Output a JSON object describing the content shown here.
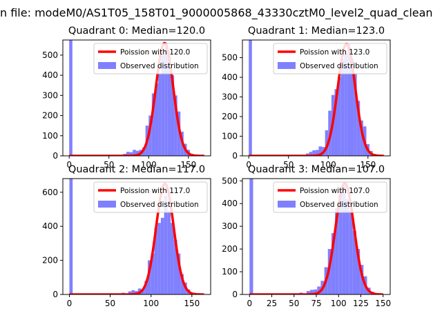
{
  "figure": {
    "suptitle": "n file: modeM0/AS1T05_158T01_9000005868_43330cztM0_level2_quad_clean"
  },
  "colors": {
    "fit_line": "#ff0000",
    "hist_fill": "#8080ff",
    "axis": "#000000",
    "background": "#ffffff"
  },
  "chart_data": [
    {
      "type": "bar",
      "title": "Quadrant 0: Median=120.0",
      "xlim": [
        -8,
        178
      ],
      "ylim": [
        0,
        575
      ],
      "xticks": [
        0,
        50,
        100,
        150
      ],
      "yticks": [
        0,
        100,
        200,
        300,
        400,
        500
      ],
      "legend_position": "top-right",
      "series": [
        {
          "name": "Poission with 120.0",
          "kind": "line",
          "mean": 120.0,
          "peak": 560,
          "x_range": [
            0,
            170
          ]
        },
        {
          "name": "Observed distribution",
          "kind": "histogram",
          "bin_width": 4,
          "bins": [
            {
              "x": 0,
              "y": 575
            },
            {
              "x": 68,
              "y": 10
            },
            {
              "x": 72,
              "y": 20
            },
            {
              "x": 76,
              "y": 18
            },
            {
              "x": 80,
              "y": 30
            },
            {
              "x": 84,
              "y": 25
            },
            {
              "x": 88,
              "y": 30
            },
            {
              "x": 92,
              "y": 42
            },
            {
              "x": 96,
              "y": 150
            },
            {
              "x": 100,
              "y": 200
            },
            {
              "x": 104,
              "y": 310
            },
            {
              "x": 108,
              "y": 360
            },
            {
              "x": 112,
              "y": 410
            },
            {
              "x": 116,
              "y": 500
            },
            {
              "x": 120,
              "y": 560
            },
            {
              "x": 124,
              "y": 500
            },
            {
              "x": 128,
              "y": 400
            },
            {
              "x": 132,
              "y": 300
            },
            {
              "x": 136,
              "y": 220
            },
            {
              "x": 140,
              "y": 120
            },
            {
              "x": 144,
              "y": 60
            },
            {
              "x": 148,
              "y": 30
            },
            {
              "x": 152,
              "y": 10
            }
          ]
        }
      ]
    },
    {
      "type": "bar",
      "title": "Quadrant 1: Median=123.0",
      "xlim": [
        -8,
        178
      ],
      "ylim": [
        0,
        590
      ],
      "xticks": [
        0,
        50,
        100,
        150
      ],
      "yticks": [
        0,
        100,
        200,
        300,
        400,
        500
      ],
      "legend_position": "top-right",
      "series": [
        {
          "name": "Poission with 123.0",
          "kind": "line",
          "mean": 123.0,
          "peak": 570,
          "x_range": [
            0,
            170
          ]
        },
        {
          "name": "Observed distribution",
          "kind": "histogram",
          "bin_width": 4,
          "bins": [
            {
              "x": 0,
              "y": 590
            },
            {
              "x": 72,
              "y": 12
            },
            {
              "x": 76,
              "y": 20
            },
            {
              "x": 80,
              "y": 28
            },
            {
              "x": 84,
              "y": 30
            },
            {
              "x": 88,
              "y": 48
            },
            {
              "x": 92,
              "y": 45
            },
            {
              "x": 96,
              "y": 130
            },
            {
              "x": 100,
              "y": 230
            },
            {
              "x": 104,
              "y": 310
            },
            {
              "x": 108,
              "y": 340
            },
            {
              "x": 112,
              "y": 400
            },
            {
              "x": 116,
              "y": 490
            },
            {
              "x": 120,
              "y": 520
            },
            {
              "x": 124,
              "y": 570
            },
            {
              "x": 128,
              "y": 500
            },
            {
              "x": 132,
              "y": 420
            },
            {
              "x": 136,
              "y": 280
            },
            {
              "x": 140,
              "y": 180
            },
            {
              "x": 144,
              "y": 150
            },
            {
              "x": 148,
              "y": 60
            },
            {
              "x": 152,
              "y": 25
            },
            {
              "x": 156,
              "y": 10
            }
          ]
        }
      ]
    },
    {
      "type": "bar",
      "title": "Quadrant 2: Median=117.0",
      "xlim": [
        -8,
        173
      ],
      "ylim": [
        0,
        680
      ],
      "xticks": [
        0,
        50,
        100,
        150
      ],
      "yticks": [
        0,
        200,
        400,
        600
      ],
      "legend_position": "top-right",
      "series": [
        {
          "name": "Poission with 117.0",
          "kind": "line",
          "mean": 117.0,
          "peak": 650,
          "x_range": [
            0,
            165
          ]
        },
        {
          "name": "Observed distribution",
          "kind": "histogram",
          "bin_width": 4,
          "bins": [
            {
              "x": 0,
              "y": 680
            },
            {
              "x": 64,
              "y": 10
            },
            {
              "x": 72,
              "y": 18
            },
            {
              "x": 76,
              "y": 25
            },
            {
              "x": 80,
              "y": 20
            },
            {
              "x": 84,
              "y": 35
            },
            {
              "x": 88,
              "y": 30
            },
            {
              "x": 92,
              "y": 80
            },
            {
              "x": 96,
              "y": 200
            },
            {
              "x": 100,
              "y": 240
            },
            {
              "x": 104,
              "y": 390
            },
            {
              "x": 108,
              "y": 420
            },
            {
              "x": 112,
              "y": 450
            },
            {
              "x": 116,
              "y": 580
            },
            {
              "x": 120,
              "y": 490
            },
            {
              "x": 124,
              "y": 420
            },
            {
              "x": 128,
              "y": 320
            },
            {
              "x": 132,
              "y": 240
            },
            {
              "x": 136,
              "y": 120
            },
            {
              "x": 140,
              "y": 70
            },
            {
              "x": 144,
              "y": 30
            },
            {
              "x": 148,
              "y": 10
            }
          ]
        }
      ]
    },
    {
      "type": "bar",
      "title": "Quadrant 3: Median=107.0",
      "xlim": [
        -8,
        158
      ],
      "ylim": [
        0,
        510
      ],
      "xticks": [
        0,
        25,
        50,
        75,
        100,
        125,
        150
      ],
      "yticks": [
        0,
        100,
        200,
        300,
        400,
        500
      ],
      "legend_position": "top-right",
      "series": [
        {
          "name": "Poission with 107.0",
          "kind": "line",
          "mean": 107.0,
          "peak": 490,
          "x_range": [
            0,
            150
          ]
        },
        {
          "name": "Observed distribution",
          "kind": "histogram",
          "bin_width": 4,
          "bins": [
            {
              "x": 0,
              "y": 510
            },
            {
              "x": 56,
              "y": 8
            },
            {
              "x": 64,
              "y": 15
            },
            {
              "x": 68,
              "y": 20
            },
            {
              "x": 72,
              "y": 22
            },
            {
              "x": 76,
              "y": 35
            },
            {
              "x": 80,
              "y": 60
            },
            {
              "x": 84,
              "y": 120
            },
            {
              "x": 88,
              "y": 200
            },
            {
              "x": 92,
              "y": 270
            },
            {
              "x": 96,
              "y": 380
            },
            {
              "x": 100,
              "y": 440
            },
            {
              "x": 104,
              "y": 480
            },
            {
              "x": 108,
              "y": 420
            },
            {
              "x": 112,
              "y": 370
            },
            {
              "x": 116,
              "y": 280
            },
            {
              "x": 120,
              "y": 200
            },
            {
              "x": 124,
              "y": 130
            },
            {
              "x": 128,
              "y": 80
            },
            {
              "x": 132,
              "y": 30
            },
            {
              "x": 136,
              "y": 12
            }
          ]
        }
      ]
    }
  ]
}
